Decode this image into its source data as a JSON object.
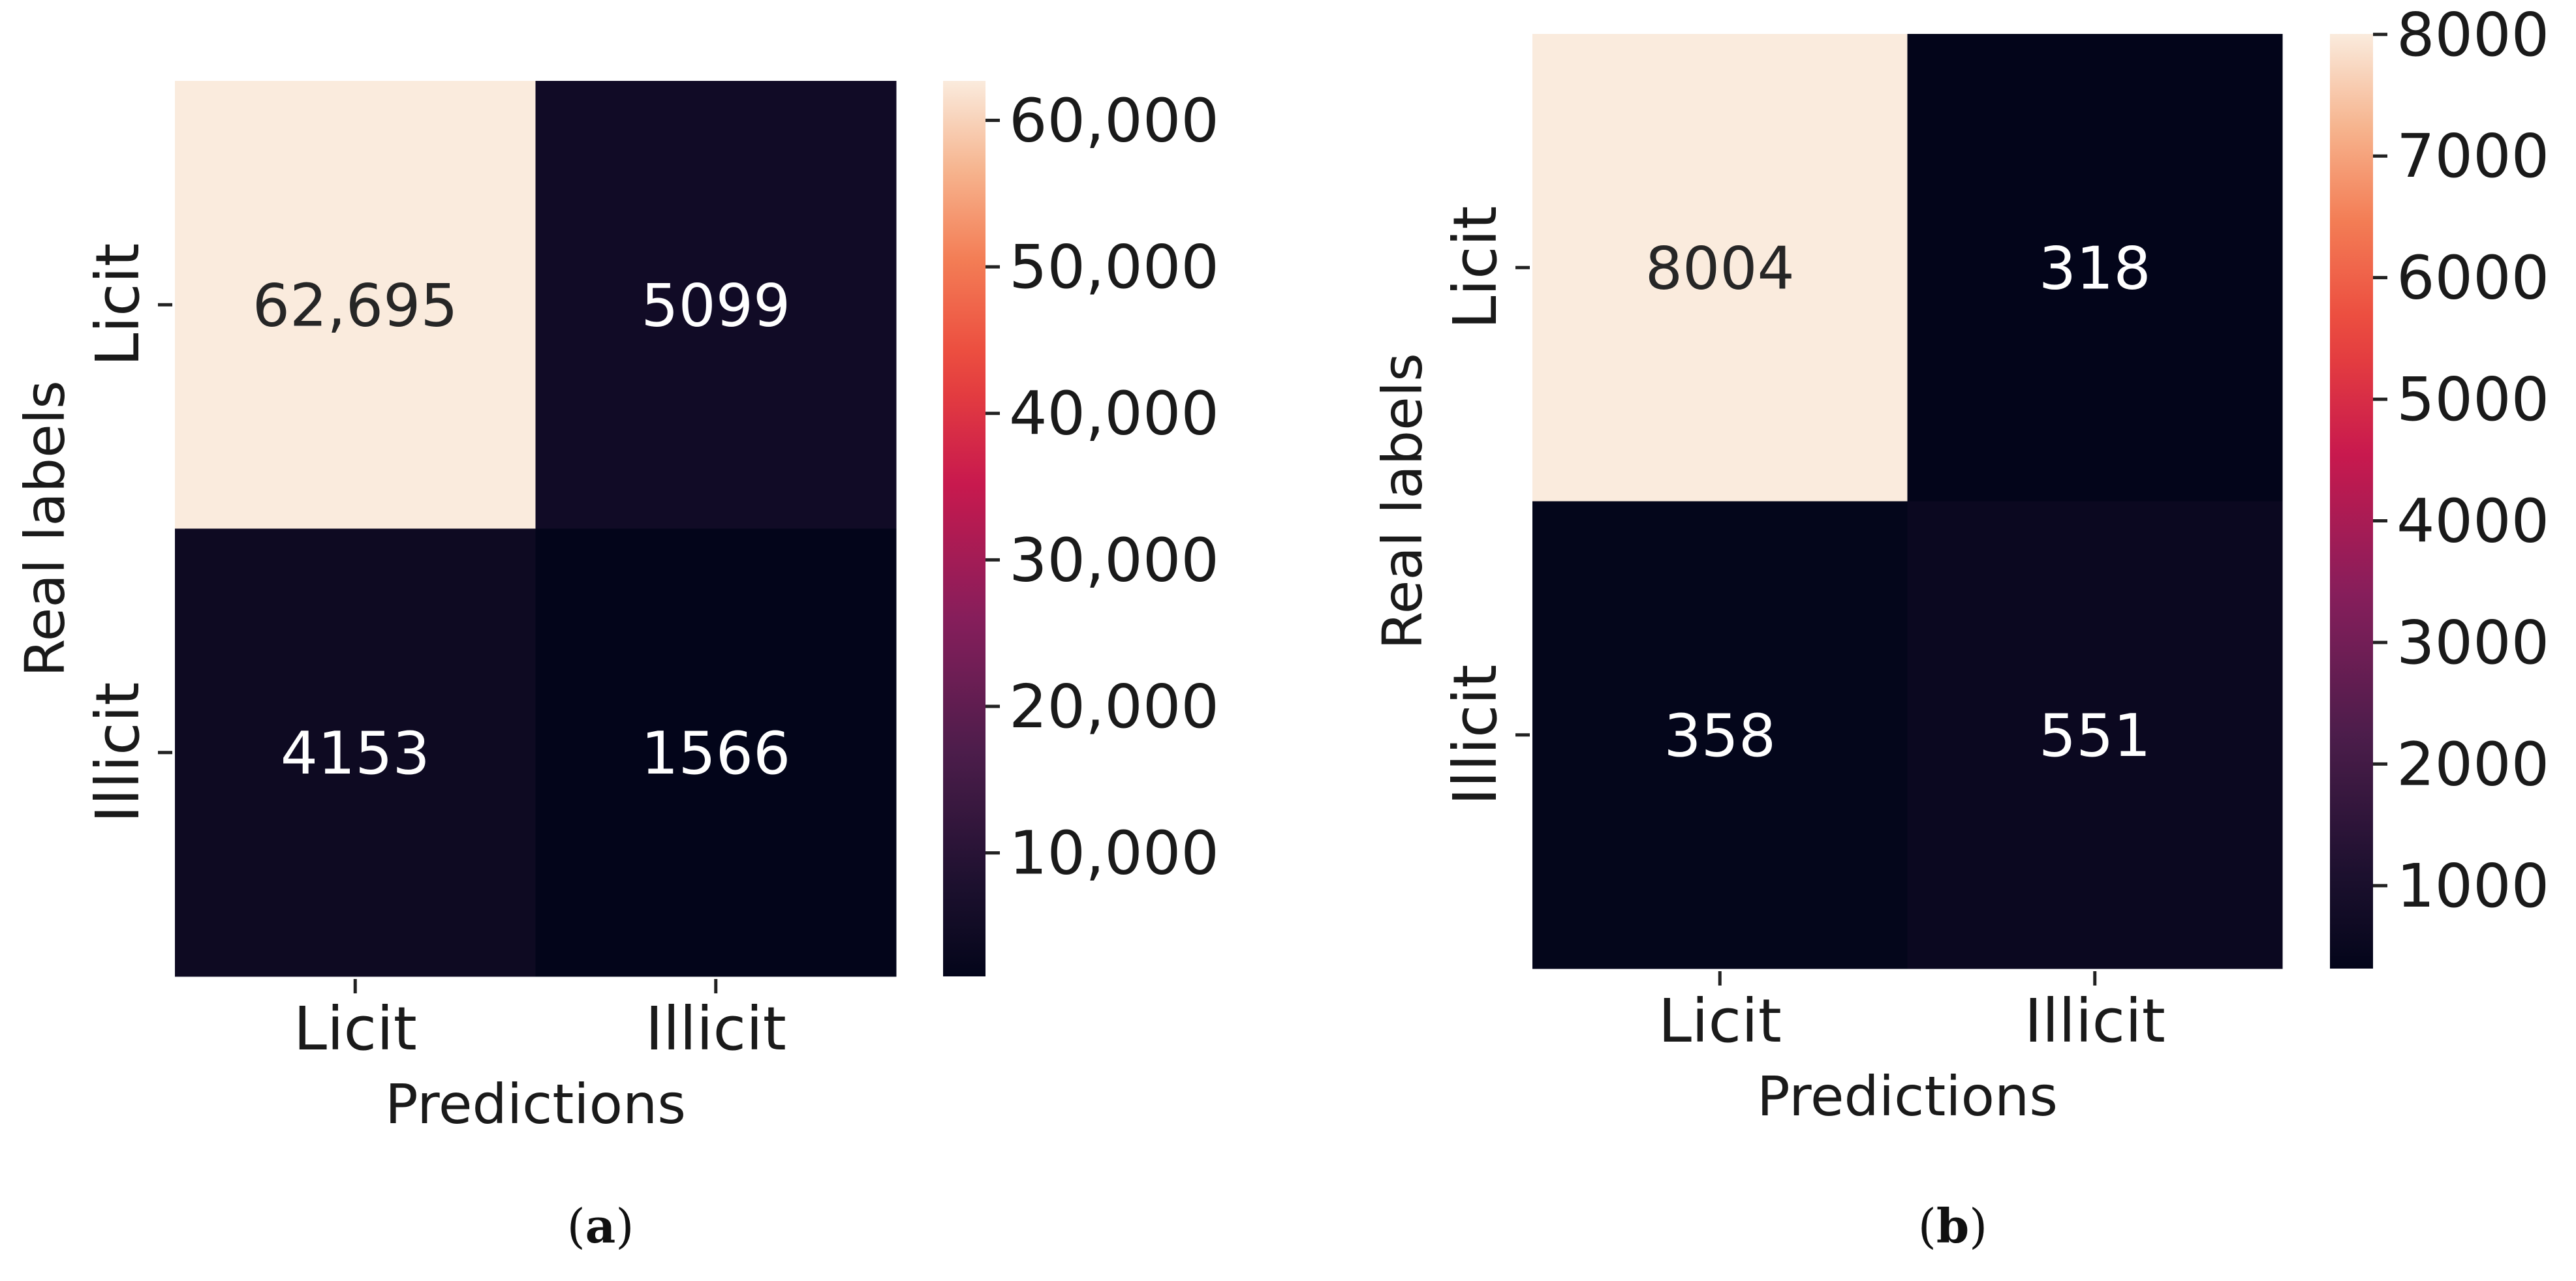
{
  "chart_data": [
    {
      "type": "heatmap",
      "panel_label": "(a)",
      "panel_letter": "a",
      "rows": [
        "Licit",
        "Illicit"
      ],
      "cols": [
        "Licit",
        "Illicit"
      ],
      "values": [
        [
          62695,
          5099
        ],
        [
          4153,
          1566
        ]
      ],
      "value_labels": [
        [
          "62,695",
          "5099"
        ],
        [
          "4153",
          "1566"
        ]
      ],
      "xlabel": "Predictions",
      "ylabel": "Real labels",
      "colorbar": {
        "range": [
          1566,
          62695
        ],
        "ticks": [
          10000,
          20000,
          30000,
          40000,
          50000,
          60000
        ],
        "tick_labels": [
          "10,000",
          "20,000",
          "30,000",
          "40,000",
          "50,000",
          "60,000"
        ]
      },
      "colormap": "rocket"
    },
    {
      "type": "heatmap",
      "panel_label": "(b)",
      "panel_letter": "b",
      "rows": [
        "Licit",
        "Illicit"
      ],
      "cols": [
        "Licit",
        "Illicit"
      ],
      "values": [
        [
          8004,
          318
        ],
        [
          358,
          551
        ]
      ],
      "value_labels": [
        [
          "8004",
          "318"
        ],
        [
          "358",
          "551"
        ]
      ],
      "xlabel": "Predictions",
      "ylabel": "Real labels",
      "colorbar": {
        "range": [
          318,
          8004
        ],
        "ticks": [
          1000,
          2000,
          3000,
          4000,
          5000,
          6000,
          7000,
          8000
        ],
        "tick_labels": [
          "1000",
          "2000",
          "3000",
          "4000",
          "5000",
          "6000",
          "7000",
          "8000"
        ]
      },
      "colormap": "rocket"
    }
  ]
}
